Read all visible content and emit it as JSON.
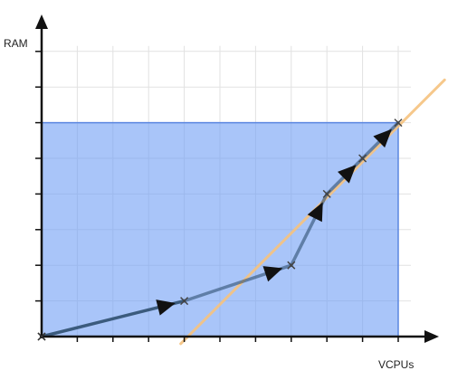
{
  "axes": {
    "x_label": "VCPUs",
    "y_label": "RAM",
    "x_range": [
      0,
      10
    ],
    "y_range": [
      0,
      8
    ],
    "grid": true
  },
  "region": {
    "x_max": 10,
    "y_max": 6,
    "color": "#6f9ff5"
  },
  "path": {
    "color": "#2f4f6f",
    "points": [
      [
        0,
        0
      ],
      [
        4,
        1
      ],
      [
        7,
        2
      ],
      [
        8,
        4
      ],
      [
        9,
        5
      ],
      [
        10,
        6
      ]
    ]
  },
  "diagonal": {
    "color": "#f5c27e",
    "from": [
      3.9,
      -0.2
    ],
    "to": [
      11.3,
      7.2
    ]
  },
  "colors": {
    "grid": "#e2e2e2",
    "axis": "#111111",
    "region_border": "#5b86e0"
  }
}
